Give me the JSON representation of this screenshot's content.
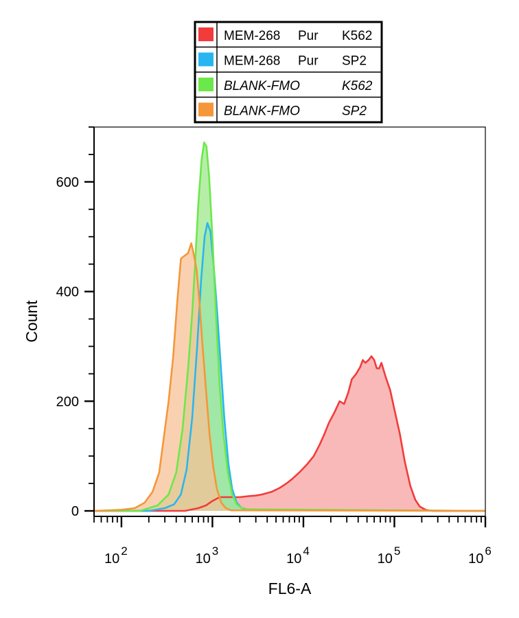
{
  "chart_data": {
    "type": "area",
    "x_scale": "log",
    "xlabel": "FL6-A",
    "ylabel": "Count",
    "xlim": [
      50,
      1000000
    ],
    "ylim": [
      -10,
      700
    ],
    "x_major_ticks": [
      {
        "base": "10",
        "exp": "2",
        "value": 100
      },
      {
        "base": "10",
        "exp": "3",
        "value": 1000
      },
      {
        "base": "10",
        "exp": "4",
        "value": 10000
      },
      {
        "base": "10",
        "exp": "5",
        "value": 100000
      },
      {
        "base": "10",
        "exp": "6",
        "value": 1000000
      }
    ],
    "y_major_ticks": [
      {
        "label": "0",
        "value": 0
      },
      {
        "label": "200",
        "value": 200
      },
      {
        "label": "400",
        "value": 400
      },
      {
        "label": "600",
        "value": 600
      }
    ],
    "y_minor_step": 50,
    "grid": false,
    "legend_position": "top-center",
    "series": [
      {
        "name": "MEM-268 Pur K562",
        "label_parts": [
          "MEM-268",
          "Pur",
          "K562"
        ],
        "italic": false,
        "color": "#f23b3b",
        "fill": "#f7a1a1",
        "points": [
          [
            50,
            0
          ],
          [
            500,
            0
          ],
          [
            700,
            5
          ],
          [
            850,
            10
          ],
          [
            1000,
            18
          ],
          [
            1200,
            25
          ],
          [
            1600,
            25
          ],
          [
            2000,
            25
          ],
          [
            2500,
            27
          ],
          [
            3000,
            28
          ],
          [
            3500,
            30
          ],
          [
            4500,
            35
          ],
          [
            5500,
            42
          ],
          [
            6500,
            50
          ],
          [
            7500,
            58
          ],
          [
            9000,
            70
          ],
          [
            11000,
            85
          ],
          [
            13000,
            100
          ],
          [
            15000,
            120
          ],
          [
            17000,
            140
          ],
          [
            19000,
            160
          ],
          [
            22000,
            180
          ],
          [
            25000,
            200
          ],
          [
            28000,
            195
          ],
          [
            31000,
            215
          ],
          [
            34000,
            240
          ],
          [
            38000,
            250
          ],
          [
            42000,
            262
          ],
          [
            45000,
            275
          ],
          [
            48000,
            270
          ],
          [
            52000,
            275
          ],
          [
            56000,
            282
          ],
          [
            60000,
            275
          ],
          [
            64000,
            260
          ],
          [
            68000,
            260
          ],
          [
            72000,
            270
          ],
          [
            80000,
            245
          ],
          [
            90000,
            220
          ],
          [
            100000,
            185
          ],
          [
            115000,
            140
          ],
          [
            130000,
            90
          ],
          [
            150000,
            45
          ],
          [
            170000,
            20
          ],
          [
            190000,
            8
          ],
          [
            220000,
            2
          ],
          [
            260000,
            0
          ],
          [
            1000000,
            0
          ]
        ]
      },
      {
        "name": "MEM-268 Pur SP2",
        "label_parts": [
          "MEM-268",
          "Pur",
          "SP2"
        ],
        "italic": false,
        "color": "#29b6f0",
        "fill": "#8fd8f6",
        "points": [
          [
            50,
            0
          ],
          [
            200,
            0
          ],
          [
            300,
            5
          ],
          [
            380,
            12
          ],
          [
            450,
            30
          ],
          [
            520,
            75
          ],
          [
            600,
            170
          ],
          [
            680,
            300
          ],
          [
            750,
            420
          ],
          [
            820,
            500
          ],
          [
            880,
            525
          ],
          [
            950,
            510
          ],
          [
            1030,
            450
          ],
          [
            1120,
            370
          ],
          [
            1230,
            270
          ],
          [
            1350,
            170
          ],
          [
            1500,
            85
          ],
          [
            1650,
            40
          ],
          [
            1850,
            15
          ],
          [
            2100,
            5
          ],
          [
            2500,
            2
          ],
          [
            1000000,
            0
          ]
        ]
      },
      {
        "name": "BLANK-FMO K562",
        "label_parts": [
          "BLANK-FMO",
          "",
          "K562"
        ],
        "italic": true,
        "color": "#6be84a",
        "fill": "#9ee88c",
        "points": [
          [
            50,
            0
          ],
          [
            160,
            0
          ],
          [
            250,
            10
          ],
          [
            330,
            30
          ],
          [
            400,
            70
          ],
          [
            470,
            150
          ],
          [
            540,
            260
          ],
          [
            600,
            360
          ],
          [
            650,
            460
          ],
          [
            700,
            560
          ],
          [
            760,
            640
          ],
          [
            810,
            672
          ],
          [
            860,
            665
          ],
          [
            920,
            610
          ],
          [
            1000,
            500
          ],
          [
            1100,
            350
          ],
          [
            1200,
            230
          ],
          [
            1320,
            140
          ],
          [
            1480,
            70
          ],
          [
            1650,
            30
          ],
          [
            1850,
            12
          ],
          [
            2200,
            3
          ],
          [
            1000000,
            0
          ]
        ]
      },
      {
        "name": "BLANK-FMO SP2",
        "label_parts": [
          "BLANK-FMO",
          "",
          "SP2"
        ],
        "italic": true,
        "color": "#f5963a",
        "fill": "#f7c197",
        "points": [
          [
            50,
            0
          ],
          [
            100,
            2
          ],
          [
            140,
            5
          ],
          [
            180,
            15
          ],
          [
            220,
            35
          ],
          [
            260,
            70
          ],
          [
            290,
            130
          ],
          [
            330,
            200
          ],
          [
            370,
            280
          ],
          [
            410,
            380
          ],
          [
            450,
            460
          ],
          [
            490,
            465
          ],
          [
            540,
            470
          ],
          [
            585,
            488
          ],
          [
            620,
            470
          ],
          [
            670,
            440
          ],
          [
            720,
            380
          ],
          [
            780,
            300
          ],
          [
            850,
            220
          ],
          [
            930,
            140
          ],
          [
            1020,
            80
          ],
          [
            1120,
            40
          ],
          [
            1250,
            15
          ],
          [
            1400,
            5
          ],
          [
            1600,
            1
          ],
          [
            1000000,
            0
          ]
        ]
      }
    ]
  }
}
